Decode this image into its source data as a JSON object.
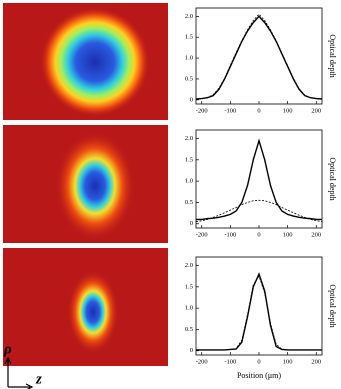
{
  "chart_data": [
    {
      "type": "line",
      "y_label": "Optical depth",
      "x": [
        -220,
        -200,
        -180,
        -160,
        -140,
        -120,
        -100,
        -80,
        -60,
        -40,
        -20,
        0,
        20,
        40,
        60,
        80,
        100,
        120,
        140,
        160,
        180,
        200,
        220
      ],
      "xlim": [
        -220,
        220
      ],
      "xticks": [
        -200,
        -100,
        0,
        100,
        200
      ],
      "ylim": [
        -0.1,
        2.2
      ],
      "yticks": [
        0,
        0.5,
        {
          "value": 1,
          "label": "1.0"
        },
        1.5,
        {
          "value": 2,
          "label": "2.0"
        }
      ],
      "series": [
        {
          "color": "#000000",
          "dashed": false,
          "values": [
            0.02,
            0.03,
            0.05,
            0.1,
            0.25,
            0.5,
            0.8,
            1.1,
            1.4,
            1.65,
            1.85,
            2.0,
            1.85,
            1.65,
            1.4,
            1.1,
            0.8,
            0.5,
            0.25,
            0.1,
            0.05,
            0.03,
            0.02
          ]
        },
        {
          "color": "#000000",
          "dashed": true,
          "values": [
            0.02,
            0.03,
            0.06,
            0.12,
            0.28,
            0.52,
            0.83,
            1.13,
            1.42,
            1.68,
            1.9,
            2.05,
            1.9,
            1.68,
            1.42,
            1.12,
            0.82,
            0.52,
            0.27,
            0.11,
            0.05,
            0.03,
            0.02
          ]
        }
      ]
    },
    {
      "type": "line",
      "y_label": "Optical depth",
      "x": [
        -220,
        -200,
        -180,
        -160,
        -140,
        -120,
        -100,
        -80,
        -60,
        -40,
        -20,
        0,
        20,
        40,
        60,
        80,
        100,
        120,
        140,
        160,
        180,
        200,
        220
      ],
      "xlim": [
        -220,
        220
      ],
      "xticks": [
        -200,
        -100,
        0,
        100,
        200
      ],
      "ylim": [
        -0.1,
        2.2
      ],
      "yticks": [
        0,
        0.5,
        {
          "value": 1,
          "label": "1.0"
        },
        1.5,
        {
          "value": 2,
          "label": "2.0"
        }
      ],
      "series": [
        {
          "color": "#000000",
          "dashed": false,
          "values": [
            0.1,
            0.1,
            0.12,
            0.13,
            0.15,
            0.18,
            0.22,
            0.3,
            0.5,
            0.9,
            1.5,
            1.95,
            1.5,
            0.9,
            0.5,
            0.3,
            0.22,
            0.18,
            0.15,
            0.13,
            0.12,
            0.1,
            0.1
          ]
        },
        {
          "color": "#000000",
          "dashed": true,
          "values": [
            0.05,
            0.07,
            0.1,
            0.15,
            0.2,
            0.26,
            0.32,
            0.38,
            0.45,
            0.5,
            0.54,
            0.55,
            0.54,
            0.5,
            0.45,
            0.38,
            0.32,
            0.26,
            0.2,
            0.15,
            0.1,
            0.07,
            0.05
          ]
        }
      ]
    },
    {
      "type": "line",
      "y_label": "Optical depth",
      "x_label": "Position (μm)",
      "x": [
        -220,
        -200,
        -180,
        -160,
        -140,
        -120,
        -100,
        -80,
        -60,
        -40,
        -20,
        0,
        20,
        40,
        60,
        80,
        100,
        120,
        140,
        160,
        180,
        200,
        220
      ],
      "xlim": [
        -220,
        220
      ],
      "xticks": [
        -200,
        -100,
        0,
        100,
        200
      ],
      "ylim": [
        -0.1,
        2.2
      ],
      "yticks": [
        0,
        0.5,
        {
          "value": 1,
          "label": "1.0"
        },
        1.5,
        {
          "value": 2,
          "label": "2.0"
        }
      ],
      "series": [
        {
          "color": "#000000",
          "dashed": false,
          "values": [
            0.02,
            0.02,
            0.02,
            0.02,
            0.02,
            0.02,
            0.03,
            0.04,
            0.2,
            0.8,
            1.5,
            1.8,
            1.4,
            0.6,
            0.1,
            0.03,
            0.02,
            0.02,
            0.02,
            0.02,
            0.02,
            0.02,
            0.02
          ]
        },
        {
          "color": "#000000",
          "dashed": true,
          "values": [
            0.02,
            0.02,
            0.02,
            0.02,
            0.02,
            0.02,
            0.03,
            0.05,
            0.25,
            0.85,
            1.55,
            1.75,
            1.35,
            0.65,
            0.15,
            0.04,
            0.02,
            0.02,
            0.02,
            0.02,
            0.02,
            0.02,
            0.02
          ]
        }
      ]
    }
  ],
  "axis_labels": {
    "rho": "ρ",
    "z": "z"
  }
}
